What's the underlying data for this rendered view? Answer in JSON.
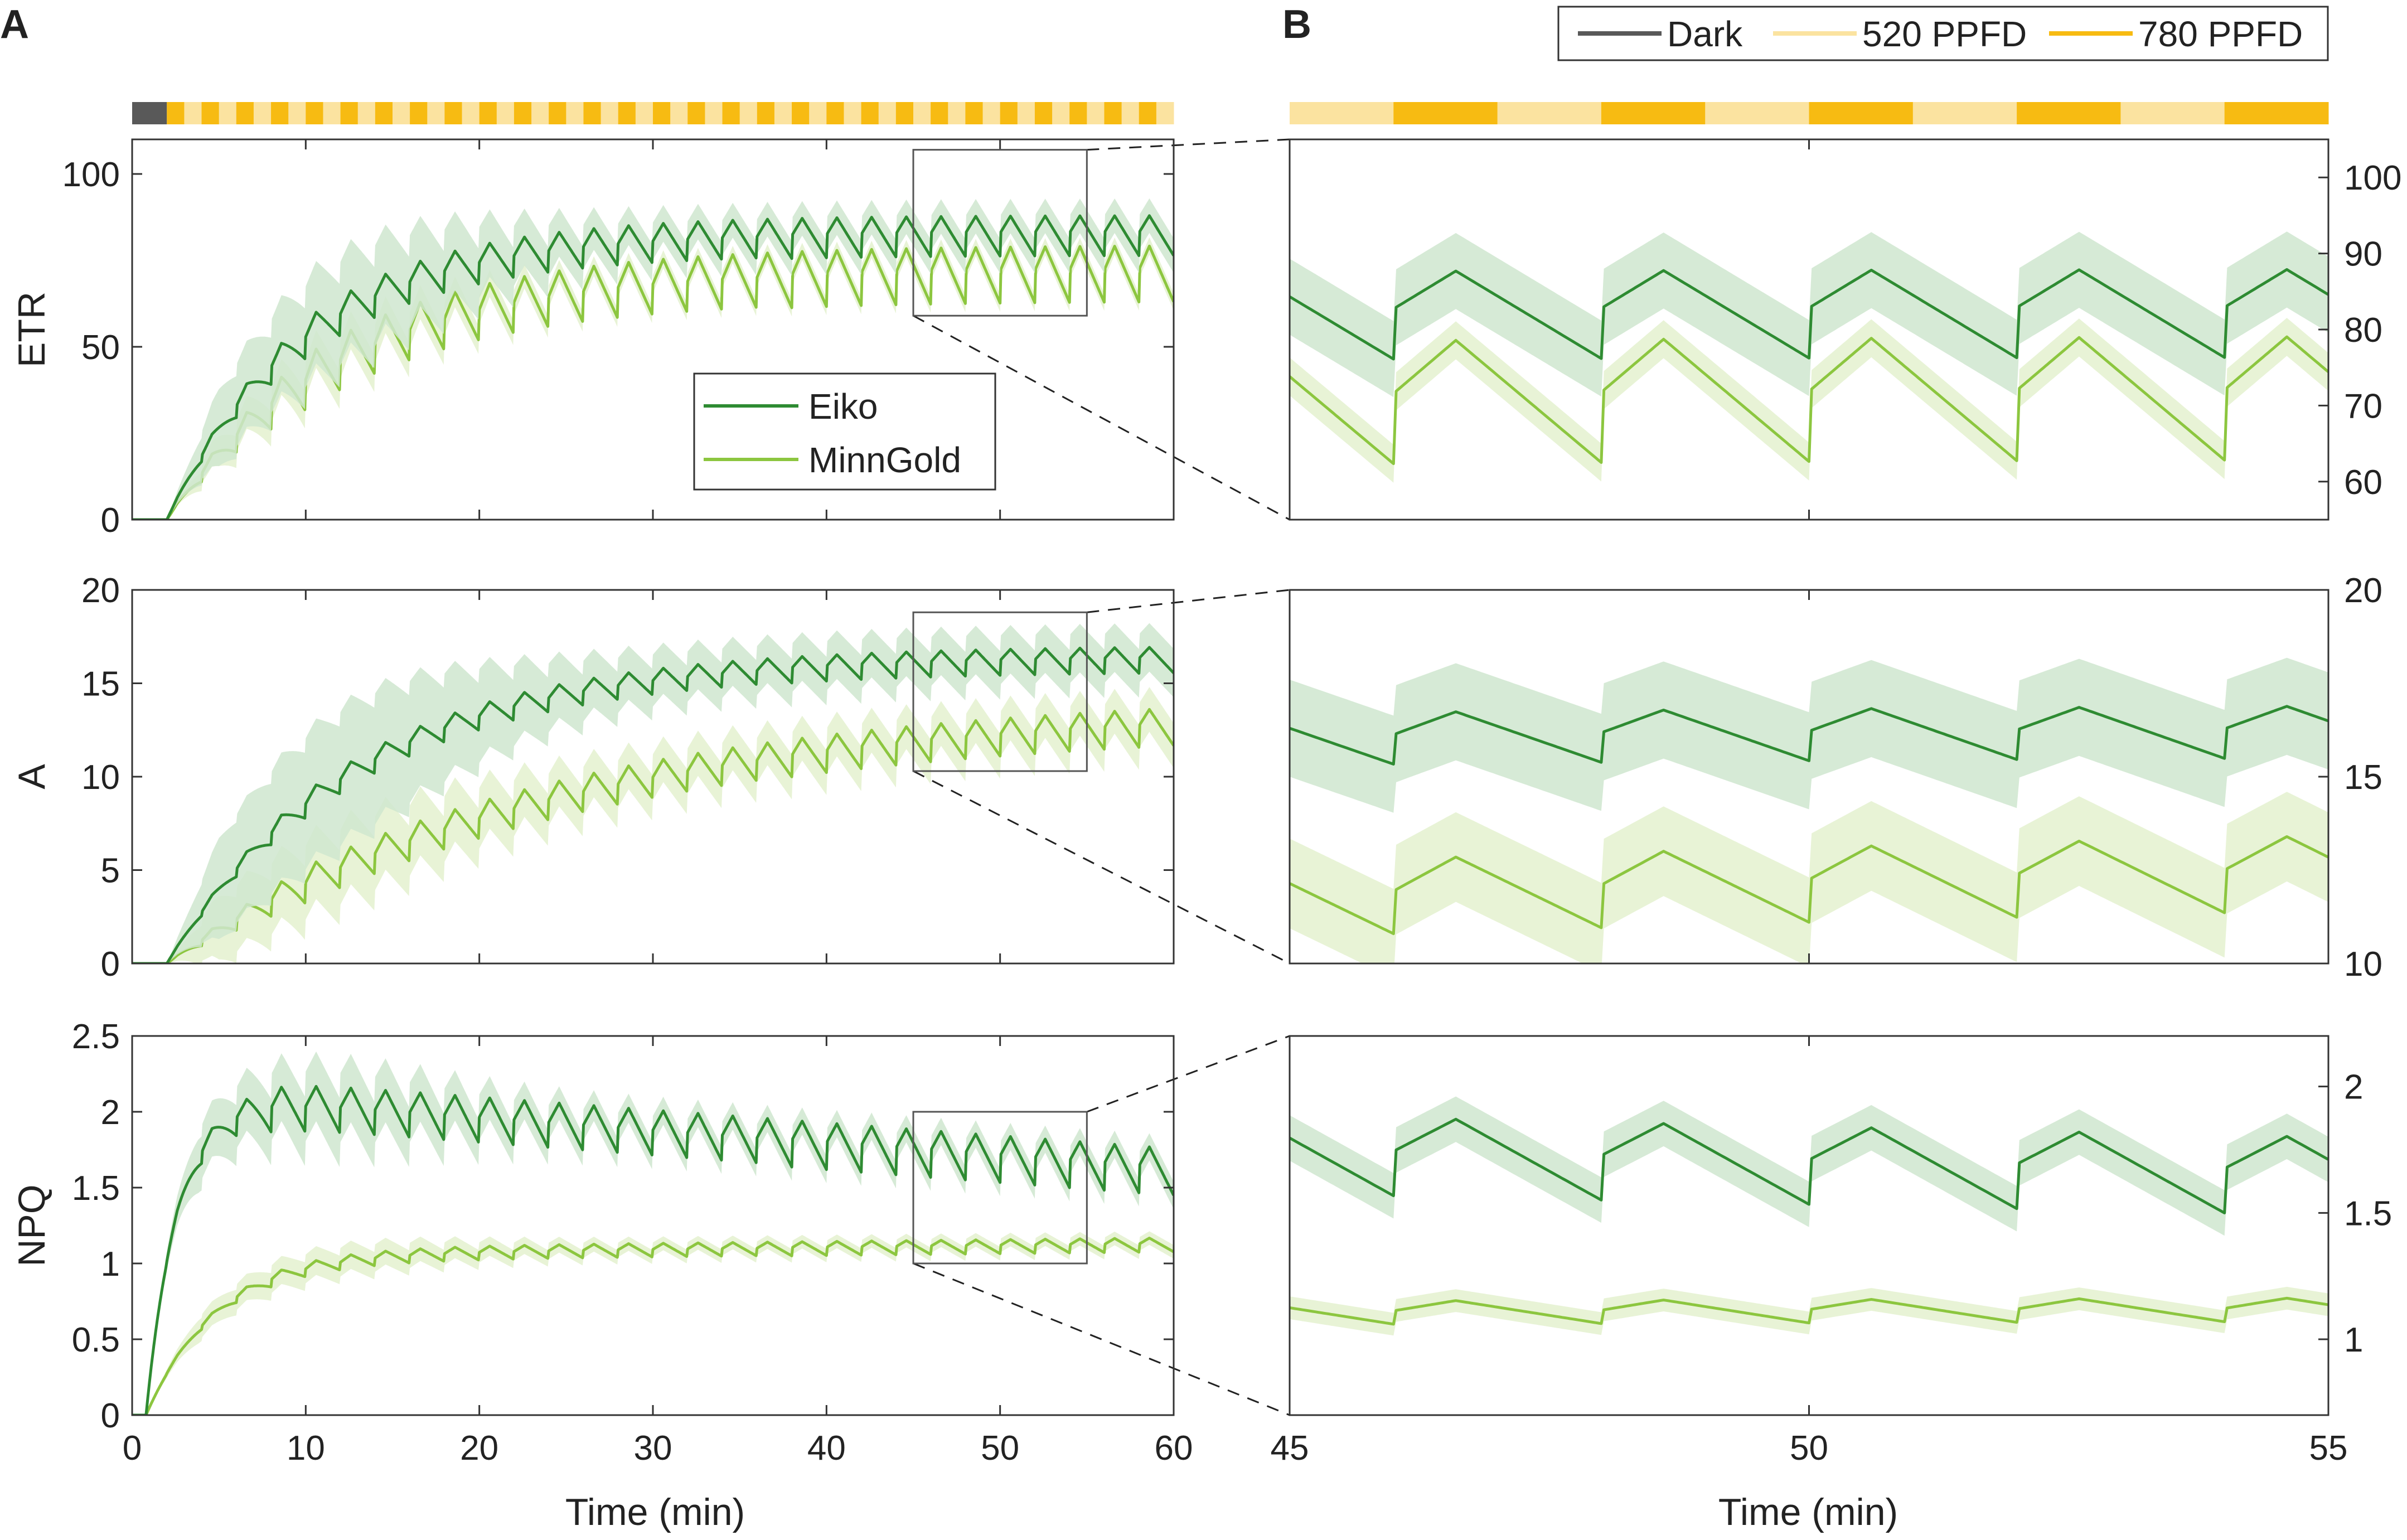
{
  "figure": {
    "panel_labels": [
      "A",
      "B"
    ],
    "legend_conditions": [
      {
        "label": "Dark",
        "color": "#595959"
      },
      {
        "label": "520 PPFD",
        "color": "#FBE3A0"
      },
      {
        "label": "780 PPFD",
        "color": "#F7BB12"
      }
    ],
    "legend_genotypes": [
      {
        "label": "Eiko",
        "color": "#2E8B32"
      },
      {
        "label": "MinnGold",
        "color": "#8CC63F"
      }
    ],
    "colors": {
      "eiko": "#2E8B32",
      "eiko_band": "#CFE6CF",
      "minngold": "#8CC63F",
      "minngold_band": "#E4F1CF",
      "dark": "#595959",
      "light_low": "#FBE3A0",
      "light_high": "#F7BB12"
    }
  },
  "chart_data": {
    "type": "line",
    "x_label": "Time (min)",
    "light_schedule": {
      "dark_interval": [
        0,
        2
      ],
      "cycle_period_min": 2,
      "high_first": true,
      "levels": [
        "Dark",
        "520 PPFD",
        "780 PPFD"
      ]
    },
    "panel_a": {
      "xlim": [
        0,
        60
      ],
      "xticks": [
        0,
        10,
        20,
        30,
        40,
        50,
        60
      ],
      "zoom_window": [
        45,
        55
      ]
    },
    "panel_b": {
      "xlim": [
        45,
        55
      ],
      "xticks": [
        45,
        50,
        55
      ]
    },
    "series_names": [
      "Eiko",
      "MinnGold"
    ],
    "rows": [
      {
        "id": "etr",
        "ylabel": "ETR",
        "a": {
          "ylim": [
            0,
            110
          ],
          "yticks": [
            0,
            50,
            100
          ]
        },
        "b": {
          "ylim": [
            55,
            105
          ],
          "yticks": [
            60,
            70,
            80,
            90,
            100
          ]
        },
        "eiko": {
          "start": 2,
          "plateau": 82,
          "tau": 8,
          "osc": 7.5,
          "band": 5,
          "band_early": 10,
          "drift": 0.0
        },
        "minngold": {
          "start": 2,
          "plateau": 71,
          "tau": 10,
          "osc": 10.5,
          "band": 2.5,
          "band_early": 3,
          "drift": 0.0
        },
        "zoom_box_y": [
          59,
          107
        ]
      },
      {
        "id": "a",
        "ylabel": "A",
        "a": {
          "ylim": [
            0,
            20
          ],
          "yticks": [
            0,
            5,
            10,
            15,
            20
          ]
        },
        "b": {
          "ylim": [
            10,
            20
          ],
          "yticks": [
            10,
            15,
            20
          ]
        },
        "eiko": {
          "start": 2,
          "plateau": 16.3,
          "tau": 11,
          "osc": 0.9,
          "band": 1.3,
          "band_early": 2.3,
          "drift": 0.0
        },
        "minngold": {
          "start": 2,
          "plateau": 13.6,
          "tau": 22,
          "osc": 1.3,
          "band": 1.2,
          "band_early": 0.8,
          "drift": 0.0
        },
        "zoom_box_y": [
          10.3,
          18.8
        ]
      },
      {
        "id": "npq",
        "ylabel": "NPQ",
        "a": {
          "ylim": [
            0,
            2.5
          ],
          "yticks": [
            0,
            0.5,
            1,
            1.5,
            2,
            2.5
          ]
        },
        "b": {
          "ylim": [
            0.7,
            2.2
          ],
          "yticks": [
            1,
            1.5,
            2
          ]
        },
        "eiko": {
          "start": 0.8,
          "plateau": 2.1,
          "tau": 1.8,
          "osc": 0.2,
          "band": 0.09,
          "band_early": 0.14,
          "drift": -0.0085
        },
        "minngold": {
          "start": 0.8,
          "plateau": 1.05,
          "tau": 4,
          "osc": 0.06,
          "band": 0.045,
          "band_early": 0.05,
          "drift": 0.0012
        },
        "zoom_box_y": [
          1.0,
          2.0
        ]
      }
    ]
  }
}
